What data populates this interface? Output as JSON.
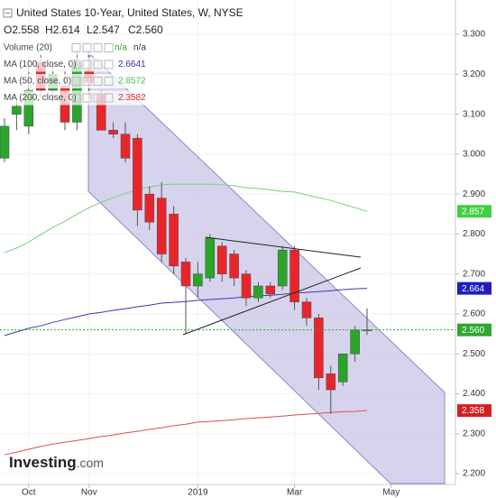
{
  "chart_data": {
    "type": "candlestick",
    "title": "United States 10-Year, United States, W, NYSE",
    "ohlc_header": [
      {
        "key": "O",
        "text": "2.558"
      },
      {
        "key": "H",
        "text": "2.614"
      },
      {
        "key": "L",
        "text": "2.547"
      },
      {
        "key": "C",
        "text": "2.560"
      }
    ],
    "indicators": [
      {
        "name": "Volume (20)",
        "text": "n/a",
        "text2": "n/a",
        "color": "#2a9d2a"
      },
      {
        "name": "MA (100, close, 0)",
        "text": "2.6641",
        "color": "#2b2bb8"
      },
      {
        "name": "MA (50, close, 0)",
        "text": "2.8572",
        "color": "#4cc24c"
      },
      {
        "name": "MA (200, close, 0)",
        "text": "2.3582",
        "color": "#d02a2a"
      }
    ],
    "categories": [
      null,
      null,
      "Oct",
      null,
      null,
      null,
      null,
      "Nov",
      null,
      null,
      null,
      null,
      null,
      null,
      null,
      null,
      "2019",
      null,
      null,
      null,
      null,
      null,
      null,
      null,
      "Mar",
      null,
      null,
      null,
      null,
      null,
      null,
      null,
      "May",
      null,
      null,
      null,
      null,
      null
    ],
    "open": [
      2.99,
      3.1,
      3.07,
      3.23,
      3.16,
      3.17,
      3.08,
      3.21,
      3.15,
      3.06,
      3.05,
      3.04,
      2.9,
      2.89,
      2.85,
      2.73,
      2.67,
      2.69,
      2.77,
      2.75,
      2.7,
      2.64,
      2.67,
      2.67,
      2.76,
      2.63,
      2.59,
      2.45,
      2.43,
      2.5,
      2.558,
      null,
      null,
      null,
      null,
      null,
      null,
      null
    ],
    "high": [
      3.09,
      3.14,
      3.24,
      3.25,
      3.22,
      3.21,
      3.26,
      3.26,
      3.16,
      3.08,
      3.08,
      3.05,
      2.92,
      2.93,
      2.87,
      2.74,
      2.73,
      2.8,
      2.78,
      2.76,
      2.71,
      2.68,
      2.68,
      2.77,
      2.77,
      2.64,
      2.6,
      2.47,
      2.5,
      2.57,
      2.614,
      null,
      null,
      null,
      null,
      null,
      null,
      null
    ],
    "low": [
      2.98,
      3.06,
      3.05,
      3.14,
      3.13,
      3.06,
      3.06,
      3.14,
      3.06,
      3.04,
      2.98,
      2.82,
      2.81,
      2.73,
      2.7,
      2.55,
      2.64,
      2.68,
      2.68,
      2.67,
      2.62,
      2.63,
      2.64,
      2.66,
      2.61,
      2.57,
      2.41,
      2.35,
      2.42,
      2.48,
      2.547,
      null,
      null,
      null,
      null,
      null,
      null,
      null
    ],
    "close": [
      3.07,
      3.12,
      3.16,
      3.16,
      3.2,
      3.08,
      3.23,
      3.18,
      3.06,
      3.05,
      2.99,
      2.86,
      2.83,
      2.75,
      2.72,
      2.67,
      2.7,
      2.79,
      2.7,
      2.69,
      2.64,
      2.67,
      2.65,
      2.76,
      2.63,
      2.59,
      2.44,
      2.41,
      2.5,
      2.56,
      2.56,
      null,
      null,
      null,
      null,
      null,
      null,
      null
    ],
    "up_color": "#2aa52a",
    "down_color": "#e8262a",
    "series": [
      {
        "name": "MA (100, close, 0)",
        "color": "#3a3ab0",
        "values": [
          2.546,
          2.555,
          2.564,
          2.57,
          2.579,
          2.586,
          2.593,
          2.6,
          2.604,
          2.609,
          2.613,
          2.618,
          2.622,
          2.627,
          2.629,
          2.631,
          2.634,
          2.636,
          2.638,
          2.64,
          2.643,
          2.645,
          2.647,
          2.649,
          2.652,
          2.654,
          2.656,
          2.658,
          2.661,
          2.663,
          2.6641,
          null,
          null,
          null,
          null,
          null,
          null,
          null
        ]
      },
      {
        "name": "MA (50, close, 0)",
        "color": "#7ccf7c",
        "values": [
          2.753,
          2.765,
          2.78,
          2.799,
          2.817,
          2.832,
          2.85,
          2.866,
          2.88,
          2.891,
          2.902,
          2.911,
          2.918,
          2.923,
          2.925,
          2.925,
          2.925,
          2.925,
          2.923,
          2.921,
          2.916,
          2.914,
          2.911,
          2.907,
          2.905,
          2.898,
          2.891,
          2.884,
          2.875,
          2.866,
          2.8572,
          null,
          null,
          null,
          null,
          null,
          null,
          null
        ]
      },
      {
        "name": "MA (200, close, 0)",
        "color": "#d85050",
        "values": [
          2.247,
          2.254,
          2.261,
          2.268,
          2.274,
          2.279,
          2.283,
          2.288,
          2.293,
          2.297,
          2.302,
          2.306,
          2.311,
          2.315,
          2.32,
          2.324,
          2.329,
          2.331,
          2.333,
          2.335,
          2.338,
          2.34,
          2.342,
          2.344,
          2.347,
          2.349,
          2.351,
          2.353,
          2.355,
          2.356,
          2.3582,
          null,
          null,
          null,
          null,
          null,
          null,
          null
        ]
      }
    ],
    "price_tags": [
      {
        "value": 2.857,
        "label": "2.857",
        "color": "#3fd13f"
      },
      {
        "value": 2.664,
        "label": "2.664",
        "color": "#1f1fc0"
      },
      {
        "value": 2.56,
        "label": "2.560",
        "color": "#2fa82f"
      },
      {
        "value": 2.358,
        "label": "2.358",
        "color": "#d42020"
      }
    ],
    "last_line_color": "#22b022",
    "ylim": [
      2.173,
      3.386
    ],
    "yticks": [
      {
        "value": 3.3,
        "label": "3.300"
      },
      {
        "value": 3.2,
        "label": "3.200"
      },
      {
        "value": 3.1,
        "label": "3.100"
      },
      {
        "value": 3.0,
        "label": "3.000"
      },
      {
        "value": 2.9,
        "label": "2.900"
      },
      {
        "value": 2.8,
        "label": "2.800"
      },
      {
        "value": 2.7,
        "label": "2.700"
      },
      {
        "value": 2.6,
        "label": "2.600"
      },
      {
        "value": 2.5,
        "label": "2.500"
      },
      {
        "value": 2.4,
        "label": "2.400"
      },
      {
        "value": 2.3,
        "label": "2.300"
      },
      {
        "value": 2.2,
        "label": "2.200"
      }
    ],
    "grid": true,
    "brand": "Investing",
    "brand_suffix": ".com"
  }
}
